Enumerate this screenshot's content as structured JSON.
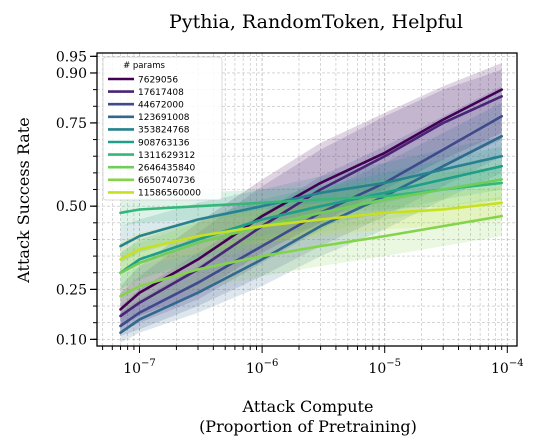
{
  "chart_data": {
    "type": "line",
    "title": "Pythia, RandomToken, Helpful",
    "xlabel": "Attack Compute",
    "xlabel_line2": "(Proportion of Pretraining)",
    "ylabel": "Attack Success Rate",
    "x_scale": "log",
    "xlim": [
      4.5e-08,
      0.00012
    ],
    "ylim": [
      0.08,
      0.96
    ],
    "grid": true,
    "legend_title": "# params",
    "legend_position": "top-left",
    "x_ticks": [
      {
        "value": 1e-07,
        "label": "10",
        "exp": "−7"
      },
      {
        "value": 1e-06,
        "label": "10",
        "exp": "−6"
      },
      {
        "value": 1e-05,
        "label": "10",
        "exp": "−5"
      },
      {
        "value": 0.0001,
        "label": "10",
        "exp": "−4"
      }
    ],
    "y_ticks": [
      {
        "value": 0.1,
        "label": "0.10"
      },
      {
        "value": 0.25,
        "label": "0.25"
      },
      {
        "value": 0.5,
        "label": "0.50"
      },
      {
        "value": 0.75,
        "label": "0.75"
      },
      {
        "value": 0.9,
        "label": "0.90"
      },
      {
        "value": 0.95,
        "label": "0.95"
      }
    ],
    "series": [
      {
        "name": "7629056",
        "color": "#440154",
        "x": [
          7e-08,
          1e-07,
          3e-07,
          1e-06,
          3e-06,
          1e-05,
          3e-05,
          9e-05
        ],
        "y": [
          0.19,
          0.24,
          0.34,
          0.47,
          0.57,
          0.66,
          0.76,
          0.85
        ],
        "lower": [
          0.14,
          0.17,
          0.24,
          0.36,
          0.45,
          0.55,
          0.64,
          0.72
        ],
        "upper": [
          0.26,
          0.32,
          0.45,
          0.58,
          0.69,
          0.78,
          0.86,
          0.93
        ]
      },
      {
        "name": "17617408",
        "color": "#482576",
        "x": [
          7e-08,
          1e-07,
          3e-07,
          1e-06,
          3e-06,
          1e-05,
          3e-05,
          9e-05
        ],
        "y": [
          0.17,
          0.21,
          0.31,
          0.44,
          0.55,
          0.65,
          0.75,
          0.83
        ],
        "lower": [
          0.12,
          0.15,
          0.22,
          0.33,
          0.43,
          0.53,
          0.62,
          0.7
        ],
        "upper": [
          0.24,
          0.29,
          0.42,
          0.56,
          0.67,
          0.77,
          0.85,
          0.91
        ]
      },
      {
        "name": "44672000",
        "color": "#3e4a89",
        "x": [
          7e-08,
          1e-07,
          3e-07,
          1e-06,
          3e-06,
          1e-05,
          3e-05,
          9e-05
        ],
        "y": [
          0.14,
          0.18,
          0.27,
          0.38,
          0.48,
          0.57,
          0.67,
          0.77
        ],
        "lower": [
          0.11,
          0.13,
          0.2,
          0.29,
          0.38,
          0.47,
          0.56,
          0.65
        ],
        "upper": [
          0.2,
          0.25,
          0.36,
          0.48,
          0.59,
          0.68,
          0.77,
          0.86
        ]
      },
      {
        "name": "123691008",
        "color": "#31688e",
        "x": [
          7e-08,
          1e-07,
          3e-07,
          1e-06,
          3e-06,
          1e-05,
          3e-05,
          9e-05
        ],
        "y": [
          0.12,
          0.16,
          0.24,
          0.34,
          0.44,
          0.53,
          0.62,
          0.71
        ],
        "lower": [
          0.09,
          0.12,
          0.18,
          0.26,
          0.35,
          0.43,
          0.52,
          0.6
        ],
        "upper": [
          0.18,
          0.22,
          0.32,
          0.44,
          0.54,
          0.63,
          0.72,
          0.81
        ]
      },
      {
        "name": "353824768",
        "color": "#26828e",
        "x": [
          7e-08,
          1e-07,
          3e-07,
          1e-06,
          3e-06,
          1e-05,
          3e-05,
          9e-05
        ],
        "y": [
          0.38,
          0.41,
          0.46,
          0.5,
          0.54,
          0.57,
          0.61,
          0.65
        ],
        "lower": [
          0.33,
          0.36,
          0.41,
          0.45,
          0.48,
          0.51,
          0.55,
          0.58
        ],
        "upper": [
          0.44,
          0.46,
          0.51,
          0.55,
          0.59,
          0.63,
          0.67,
          0.71
        ]
      },
      {
        "name": "908763136",
        "color": "#1f9e89",
        "x": [
          7e-08,
          1e-07,
          3e-07,
          1e-06,
          3e-06,
          1e-05,
          3e-05,
          9e-05
        ],
        "y": [
          0.3,
          0.34,
          0.4,
          0.46,
          0.5,
          0.54,
          0.58,
          0.62
        ],
        "lower": [
          0.25,
          0.28,
          0.34,
          0.4,
          0.44,
          0.48,
          0.52,
          0.55
        ],
        "upper": [
          0.36,
          0.4,
          0.46,
          0.52,
          0.56,
          0.6,
          0.64,
          0.68
        ]
      },
      {
        "name": "1311629312",
        "color": "#35b779",
        "x": [
          7e-08,
          1e-07,
          3e-07,
          1e-06,
          3e-06,
          1e-05,
          3e-05,
          9e-05
        ],
        "y": [
          0.48,
          0.49,
          0.5,
          0.51,
          0.52,
          0.53,
          0.55,
          0.57
        ],
        "lower": [
          0.44,
          0.45,
          0.46,
          0.47,
          0.48,
          0.49,
          0.5,
          0.52
        ],
        "upper": [
          0.52,
          0.53,
          0.54,
          0.55,
          0.56,
          0.58,
          0.6,
          0.62
        ]
      },
      {
        "name": "2646435840",
        "color": "#6ece58",
        "x": [
          7e-08,
          1e-07,
          3e-07,
          1e-06,
          3e-06,
          1e-05,
          3e-05,
          9e-05
        ],
        "y": [
          0.3,
          0.33,
          0.39,
          0.44,
          0.48,
          0.52,
          0.55,
          0.58
        ],
        "lower": [
          0.25,
          0.28,
          0.33,
          0.38,
          0.42,
          0.46,
          0.49,
          0.52
        ],
        "upper": [
          0.36,
          0.39,
          0.45,
          0.5,
          0.54,
          0.58,
          0.61,
          0.64
        ]
      },
      {
        "name": "6650740736",
        "color": "#84d44b",
        "x": [
          7e-08,
          1e-07,
          3e-07,
          1e-06,
          3e-06,
          1e-05,
          3e-05,
          9e-05
        ],
        "y": [
          0.23,
          0.26,
          0.31,
          0.35,
          0.38,
          0.41,
          0.44,
          0.47
        ],
        "lower": [
          0.18,
          0.21,
          0.25,
          0.29,
          0.32,
          0.35,
          0.38,
          0.41
        ],
        "upper": [
          0.29,
          0.32,
          0.37,
          0.41,
          0.44,
          0.47,
          0.5,
          0.53
        ]
      },
      {
        "name": "11586560000",
        "color": "#c8e020",
        "x": [
          7e-08,
          1e-07,
          3e-07,
          1e-06,
          3e-06,
          1e-05,
          3e-05,
          9e-05
        ],
        "y": [
          0.34,
          0.37,
          0.41,
          0.44,
          0.46,
          0.48,
          0.49,
          0.51
        ],
        "lower": [
          0.29,
          0.32,
          0.36,
          0.39,
          0.41,
          0.43,
          0.44,
          0.46
        ],
        "upper": [
          0.39,
          0.42,
          0.46,
          0.49,
          0.51,
          0.53,
          0.54,
          0.56
        ]
      }
    ]
  }
}
